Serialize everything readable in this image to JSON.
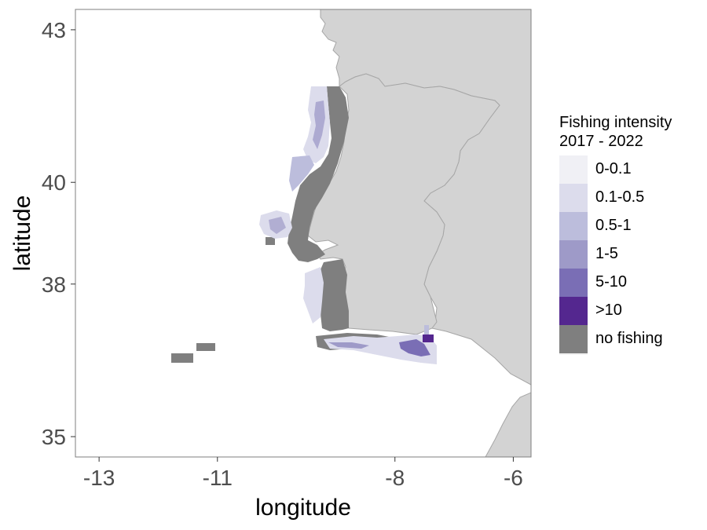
{
  "map": {
    "x_axis": {
      "title": "longitude",
      "ticks": [
        {
          "value": -13,
          "label": "-13"
        },
        {
          "value": -11,
          "label": "-11"
        },
        {
          "value": -8,
          "label": "-8"
        },
        {
          "value": -6,
          "label": "-6"
        }
      ],
      "range": [
        -13.4,
        -5.7
      ]
    },
    "y_axis": {
      "title": "latitude",
      "ticks": [
        {
          "value": 35,
          "label": "35"
        },
        {
          "value": 38,
          "label": "38"
        },
        {
          "value": 40,
          "label": "40"
        },
        {
          "value": 43,
          "label": "43"
        }
      ],
      "range": [
        34.6,
        43.4
      ]
    },
    "grid": false,
    "colors": {
      "land": "#d3d3d3",
      "land_border": "#a6a6a6",
      "no_fishing": "#7f7f7f"
    }
  },
  "legend": {
    "title": "Fishing intensity\n 2017 - 2022",
    "placement": "right",
    "items": [
      {
        "label": "0-0.1",
        "color": "#f0f0f5"
      },
      {
        "label": "0.1-0.5",
        "color": "#dcdcec"
      },
      {
        "label": "0.5-1",
        "color": "#bcbddc"
      },
      {
        "label": "1-5",
        "color": "#9e9ac8"
      },
      {
        "label": "5-10",
        "color": "#7a6eb5"
      },
      {
        "label": ">10",
        "color": "#54278f"
      },
      {
        "label": "no fishing",
        "color": "#7f7f7f"
      }
    ]
  }
}
